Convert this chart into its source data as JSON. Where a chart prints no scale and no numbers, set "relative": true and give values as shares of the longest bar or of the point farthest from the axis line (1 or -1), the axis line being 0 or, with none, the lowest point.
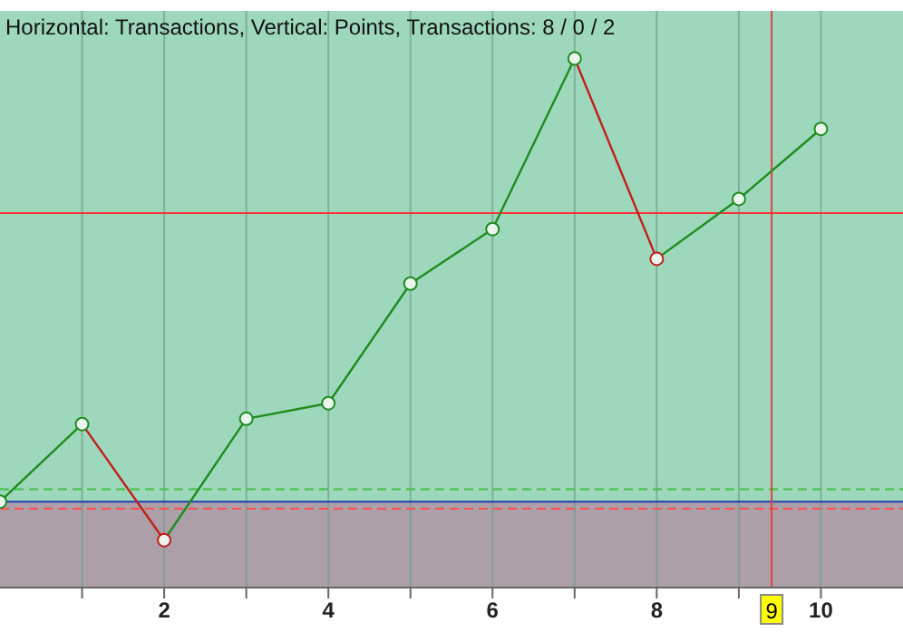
{
  "chart_data": {
    "type": "line",
    "relative": true,
    "title": "Horizontal: Transactions, Vertical: Points, Transactions: 8 / 0 / 2",
    "x": [
      0,
      1,
      2,
      3,
      4,
      5,
      6,
      7,
      8,
      9,
      10
    ],
    "series": [
      {
        "colors": [
          "#1e8c1e",
          "#1e8c1e",
          "#c0201c",
          "#1e8c1e",
          "#1e8c1e",
          "#1e8c1e",
          "#1e8c1e",
          "#1e8c1e",
          "#c0201c",
          "#1e8c1e",
          "#1e8c1e"
        ],
        "values": [
          0,
          0.175,
          -0.087,
          0.187,
          0.222,
          0.492,
          0.615,
          1,
          0.548,
          0.683,
          0.841
        ]
      }
    ],
    "xlim": [
      0,
      11
    ],
    "xticks": [
      {
        "value": 1,
        "label": null
      },
      2,
      {
        "value": 3,
        "label": null
      },
      4,
      {
        "value": 5,
        "label": null
      },
      6,
      {
        "value": 7,
        "label": null
      },
      8,
      {
        "value": 9,
        "label": null
      },
      10
    ],
    "ref_lines": [
      {
        "axis": "y",
        "value": 0.651,
        "color": "#ff3030",
        "line_style": "solid"
      },
      {
        "axis": "y",
        "value": 0.028,
        "color": "#40c040",
        "line_style": "dashed"
      },
      {
        "axis": "y",
        "value": -0.016,
        "color": "#ff5050",
        "line_style": "dashed"
      },
      {
        "axis": "y",
        "value": 0,
        "color": "#2040b0",
        "line_style": "solid"
      },
      {
        "axis": "x",
        "value": 9.4,
        "label": "9",
        "color": "#e04040",
        "line_style": "solid"
      }
    ],
    "bands": [
      {
        "axis": "y",
        "from": -0.194,
        "to": 0,
        "color": "#ad9fa8"
      }
    ],
    "grid": "x",
    "marker": "circle",
    "line_style": "solid"
  }
}
